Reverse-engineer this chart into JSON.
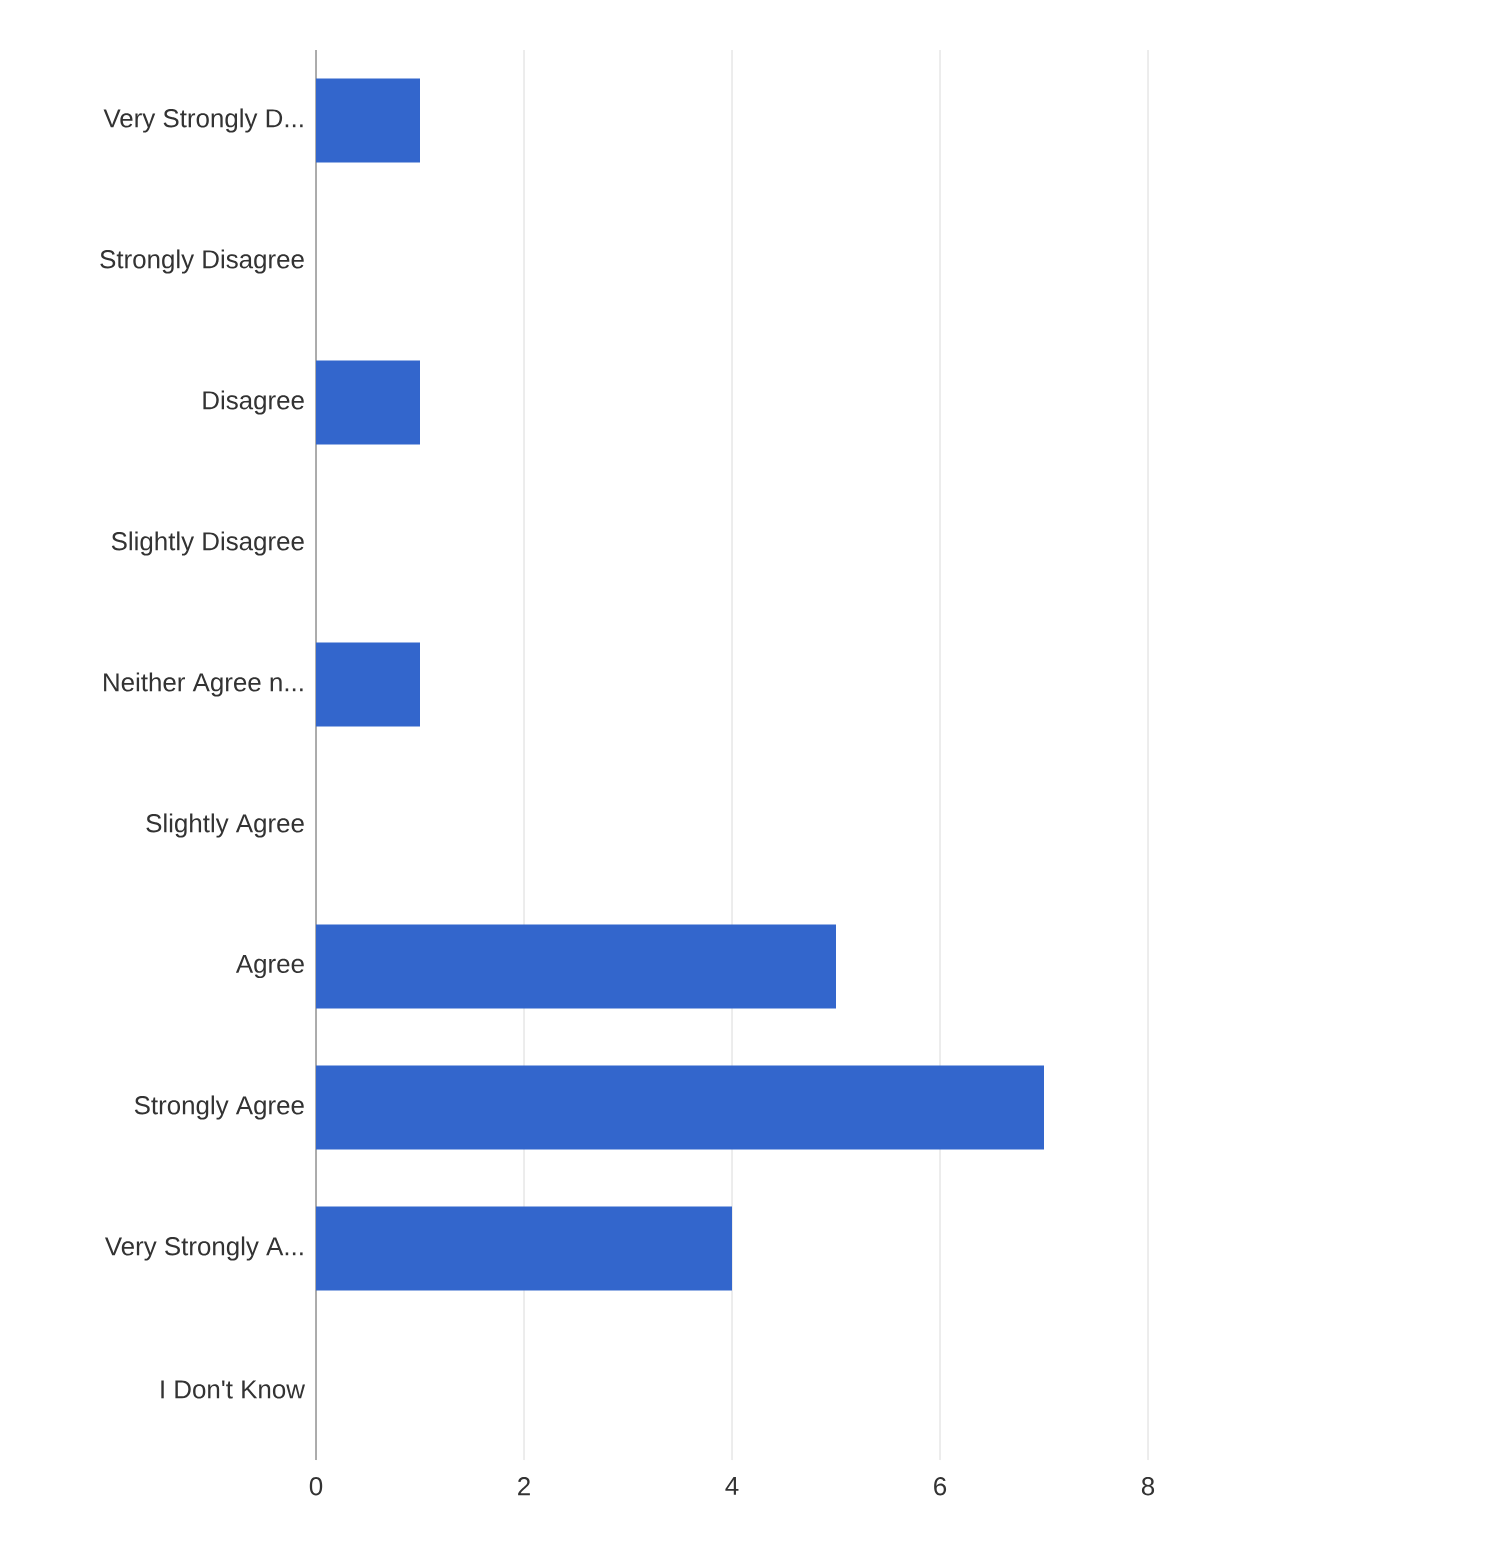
{
  "chart_data": {
    "type": "bar",
    "orientation": "horizontal",
    "categories": [
      "Very Strongly D...",
      "Strongly Disagree",
      "Disagree",
      "Slightly Disagree",
      "Neither Agree n...",
      "Slightly Agree",
      "Agree",
      "Strongly Agree",
      "Very Strongly A...",
      "I Don't Know"
    ],
    "values": [
      1,
      0,
      1,
      0,
      1,
      0,
      5,
      7,
      4,
      0
    ],
    "color": "#3366cc",
    "xlim": [
      0,
      8
    ],
    "xticks": [
      0,
      2,
      4,
      6,
      8
    ],
    "grid": "x"
  }
}
